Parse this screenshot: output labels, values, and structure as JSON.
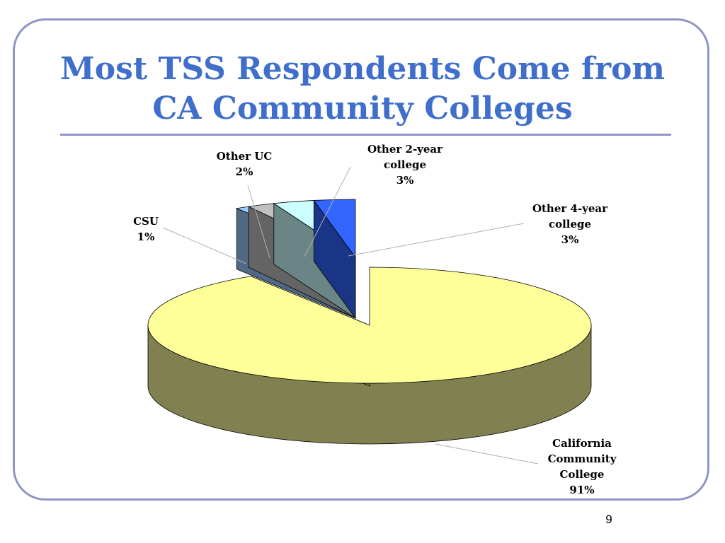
{
  "slide": {
    "title_line1": "Most TSS Respondents Come from",
    "title_line2": "CA Community Colleges",
    "page_number": "9"
  },
  "chart_data": {
    "type": "pie",
    "title": "",
    "is_3d": true,
    "data_labels": "category and percent, with leader lines",
    "exploded_slice": "California Community College",
    "slices": [
      {
        "label": "California Community College",
        "value": 91,
        "value_label": "91%",
        "color": "#ffff99",
        "side_color": "#808050",
        "label_lines": [
          "California",
          "Community",
          "College",
          "91%"
        ]
      },
      {
        "label": "CSU",
        "value": 1,
        "value_label": "1%",
        "color": "#99ccff",
        "side_color": "#506a85",
        "label_lines": [
          "CSU",
          "1%"
        ]
      },
      {
        "label": "Other UC",
        "value": 2,
        "value_label": "2%",
        "color": "#c0c0c0",
        "side_color": "#646464",
        "label_lines": [
          "Other UC",
          "2%"
        ]
      },
      {
        "label": "Other 2-year college",
        "value": 3,
        "value_label": "3%",
        "color": "#ccffff",
        "side_color": "#6a8585",
        "label_lines": [
          "Other 2-year",
          "college",
          "3%"
        ]
      },
      {
        "label": "Other 4-year college",
        "value": 3,
        "value_label": "3%",
        "color": "#3366ff",
        "side_color": "#1a3585",
        "label_lines": [
          "Other 4-year",
          "college",
          "3%"
        ]
      }
    ]
  }
}
